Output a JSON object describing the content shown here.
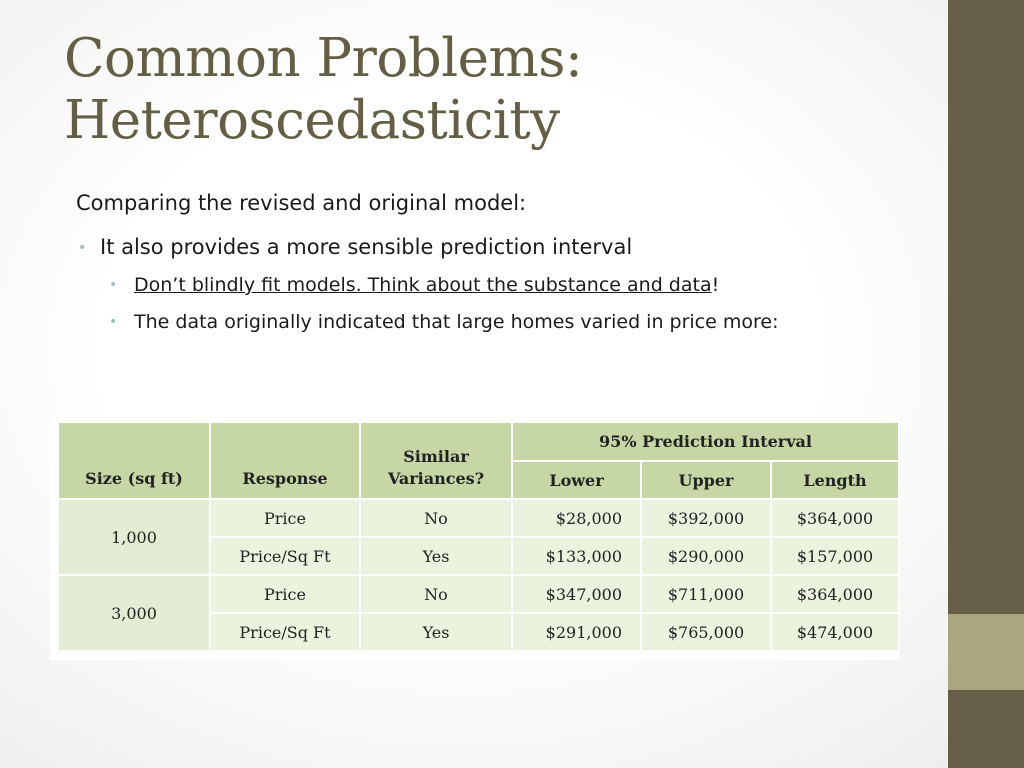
{
  "slide": {
    "title_line1": "Common Problems:",
    "title_line2": "Heteroscedasticity",
    "intro": "Comparing the revised and original model:",
    "bullet1": "It also provides a more sensible prediction interval",
    "bullet2_underlined": "Don’t blindly fit models. Think about the substance and data",
    "bullet2_suffix": "!",
    "bullet3": "The data originally indicated that large homes varied in price more:",
    "bullet_glyph": "•"
  },
  "table": {
    "headers": {
      "size": "Size (sq ft)",
      "response": "Response",
      "similar": "Similar Variances?",
      "interval_group": "95% Prediction Interval",
      "lower": "Lower",
      "upper": "Upper",
      "length": "Length"
    },
    "groups": [
      {
        "size": "1,000",
        "rows": [
          {
            "response": "Price",
            "similar": "No",
            "lower": "$28,000",
            "upper": "$392,000",
            "length": "$364,000"
          },
          {
            "response": "Price/Sq Ft",
            "similar": "Yes",
            "lower": "$133,000",
            "upper": "$290,000",
            "length": "$157,000"
          }
        ]
      },
      {
        "size": "3,000",
        "rows": [
          {
            "response": "Price",
            "similar": "No",
            "lower": "$347,000",
            "upper": "$711,000",
            "length": "$364,000"
          },
          {
            "response": "Price/Sq Ft",
            "similar": "Yes",
            "lower": "$291,000",
            "upper": "$765,000",
            "length": "$474,000"
          }
        ]
      }
    ]
  },
  "colors": {
    "title": "#635f45",
    "sidebar": "#675e47",
    "sidebar_accent": "#aaa67d",
    "table_header": "#c6d7a5",
    "table_cell": "#ebf2de",
    "bullet": "#9cbfbd"
  }
}
